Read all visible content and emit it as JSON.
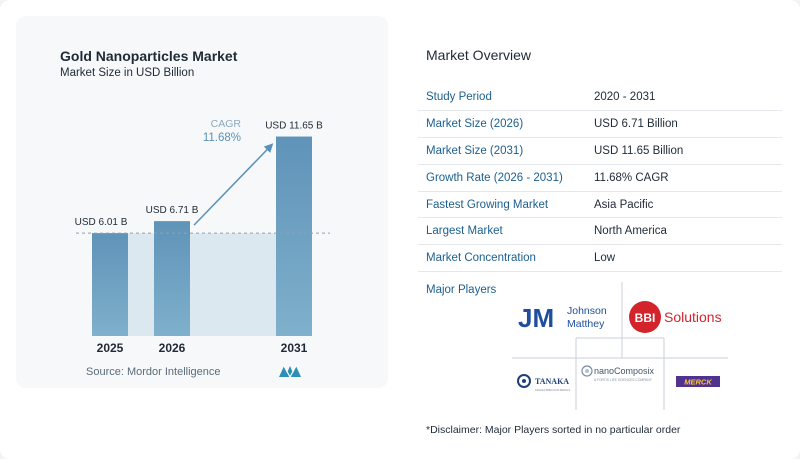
{
  "chart": {
    "title": "Gold Nanoparticles Market",
    "subtitle": "Market Size in USD Billion",
    "source": "Source:  Mordor Intelligence",
    "cagr_label": "CAGR",
    "cagr_value": "11.68%"
  },
  "chart_data": {
    "type": "bar",
    "title": "Gold Nanoparticles Market",
    "subtitle": "Market Size in USD Billion",
    "categories": [
      "2025",
      "2026",
      "2031"
    ],
    "values": [
      6.01,
      6.71,
      11.65
    ],
    "data_labels": [
      "USD 6.01 B",
      "USD 6.71 B",
      "USD 11.65 B"
    ],
    "ylim": [
      0,
      12.5
    ],
    "grid": false,
    "annotation": {
      "text": "CAGR 11.68%",
      "from": "2026",
      "to": "2031"
    },
    "colors": {
      "bar": "#6b9dbf",
      "bar_gradient_end": "#4f86ad",
      "shade": "#dce8f0",
      "arrow": "#5a91b8",
      "baseline": "#8fa3b3"
    }
  },
  "overview": {
    "title": "Market Overview",
    "rows": [
      {
        "key": "Study Period",
        "value": "2020 - 2031"
      },
      {
        "key": "Market Size (2026)",
        "value": "USD 6.71 Billion"
      },
      {
        "key": "Market Size (2031)",
        "value": "USD 11.65 Billion"
      },
      {
        "key": "Growth Rate (2026 - 2031)",
        "value": "11.68% CAGR"
      },
      {
        "key": "Fastest Growing Market",
        "value": "Asia Pacific"
      },
      {
        "key": "Largest Market",
        "value": "North America"
      },
      {
        "key": "Market Concentration",
        "value": "Low"
      }
    ],
    "players_label": "Major Players",
    "players": [
      {
        "name": "Johnson Matthey",
        "mark": "JM",
        "line1": "Johnson",
        "line2": "Matthey"
      },
      {
        "name": "BBI Solutions",
        "mark": "BBI",
        "word": "Solutions"
      },
      {
        "name": "TANAKA",
        "sub": "TANAKA PRECIOUS METALS"
      },
      {
        "name": "nanoComposix",
        "sub": "A FORTIS LIFE SCIENCES COMPANY"
      },
      {
        "name": "MERCK"
      }
    ],
    "disclaimer": "*Disclaimer: Major Players sorted in no particular order"
  }
}
